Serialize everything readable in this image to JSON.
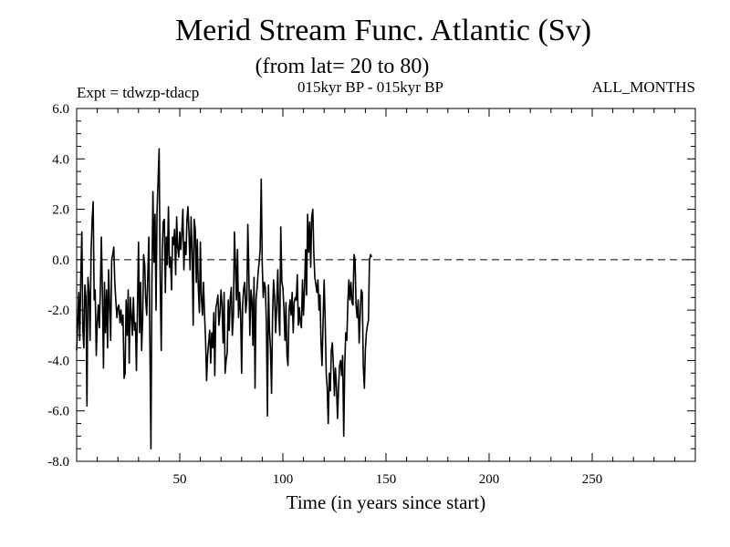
{
  "header": {
    "title": "Merid Stream Func. Atlantic (Sv)",
    "subtitle": "(from lat= 20 to 80)",
    "experiment": "Expt = tdwzp-tdacp",
    "period": "015kyr BP - 015kyr BP",
    "months": "ALL_MONTHS"
  },
  "chart_data": {
    "type": "line",
    "title": "Merid Stream Func. Atlantic (Sv)",
    "subtitle": "(from lat= 20 to 80)",
    "xlabel": "Time (in years since start)",
    "ylabel": "",
    "xlim": [
      0,
      300
    ],
    "ylim": [
      -8,
      6
    ],
    "x_ticks": [
      50,
      100,
      150,
      200,
      250
    ],
    "y_ticks": [
      6,
      4,
      2,
      0,
      -2,
      -4,
      -6,
      -8
    ],
    "y_tick_labels": [
      "6.0",
      "4.0",
      "2.0",
      "0.0",
      "-2.0",
      "-4.0",
      "-6.0",
      "-8.0"
    ],
    "reference_line": {
      "y": 0,
      "style": "dashed"
    },
    "grid": false,
    "x_start": 0,
    "x_step": 0.5,
    "series": [
      {
        "color": "#000000",
        "values": [
          -3.6,
          -2.6,
          -1.3,
          -3.2,
          -0.8,
          1.1,
          -2.8,
          -3.5,
          -1.0,
          -1.5,
          -5.8,
          -0.7,
          -1.3,
          -3.2,
          0.3,
          1.6,
          2.3,
          -1.6,
          -1.2,
          -3.8,
          -2.5,
          -1.8,
          -2.7,
          -1.1,
          0.9,
          -1.5,
          -4.3,
          -0.9,
          -2.9,
          -1.2,
          -3.5,
          -0.4,
          -1.9,
          -3.2,
          0.0,
          0.2,
          0.5,
          -0.9,
          -1.6,
          -2.3,
          -1.9,
          -1.8,
          -2.5,
          -2.0,
          -2.6,
          -2.2,
          -4.7,
          -4.5,
          -1.6,
          -3.0,
          -1.2,
          -4.1,
          -1.5,
          -2.2,
          -3.0,
          -1.5,
          -2.8,
          -2.5,
          -4.4,
          -1.8,
          0.7,
          -2.9,
          -0.9,
          -3.6,
          -2.4,
          0.2,
          -0.2,
          -1.6,
          -2.2,
          -0.6,
          0.9,
          -3.1,
          -7.5,
          -0.9,
          2.7,
          -0.1,
          1.8,
          -2.0,
          1.9,
          3.2,
          4.4,
          -0.6,
          -3.6,
          0.4,
          1.5,
          1.6,
          -1.3,
          0.9,
          -0.2,
          2.1,
          -0.3,
          0.1,
          -1.2,
          0.9,
          0.6,
          1.2,
          -0.6,
          1.7,
          0.5,
          0.1,
          1.1,
          0.4,
          1.1,
          2.0,
          -0.4,
          0.7,
          0.2,
          1.6,
          2.1,
          1.0,
          -0.4,
          1.7,
          0.3,
          -2.6,
          1.6,
          1.2,
          -0.9,
          0.8,
          -1.1,
          -2.1,
          0.7,
          -1.5,
          -2.2,
          -0.9,
          -2.1,
          -3.2,
          -4.8,
          -3.8,
          -3.3,
          -2.8,
          -4.1,
          -2.9,
          -3.5,
          -2.1,
          -4.6,
          -1.9,
          -1.7,
          -1.4,
          -2.6,
          -2.1,
          -1.2,
          -1.8,
          -3.3,
          -1.3,
          -4.5,
          -4.0,
          -3.7,
          -1.6,
          -2.8,
          -1.5,
          -1.1,
          -3.0,
          -2.2,
          1.1,
          -0.1,
          -1.6,
          0.4,
          -2.3,
          -1.3,
          -2.1,
          -4.5,
          -1.8,
          -1.1,
          -0.9,
          -2.1,
          -1.6,
          1.4,
          -0.5,
          -3.0,
          -1.2,
          -1.6,
          -3.4,
          -0.7,
          -5.1,
          -1.6,
          -1.1,
          -0.5,
          -0.1,
          0.4,
          3.2,
          -0.2,
          -1.5,
          -0.9,
          -1.1,
          -2.5,
          -6.2,
          -1.0,
          -2.8,
          -3.5,
          -5.3,
          -2.2,
          -0.8,
          -1.5,
          -2.9,
          -1.9,
          -0.4,
          -2.1,
          -3.0,
          1.3,
          -0.9,
          -1.1,
          -1.9,
          -3.2,
          -1.7,
          -3.8,
          -4.2,
          -2.0,
          -1.6,
          -2.2,
          -1.3,
          -2.9,
          -1.7,
          -1.5,
          -1.6,
          -0.6,
          -2.6,
          -1.9,
          -2.5,
          -2.7,
          -0.8,
          -2.2,
          -1.2,
          0.4,
          -1.4,
          1.8,
          0.3,
          1.5,
          -0.3,
          1.7,
          2.0,
          0.3,
          -0.7,
          -1.0,
          -1.3,
          -0.8,
          -2.0,
          -1.4,
          -3.3,
          -4.2,
          -2.4,
          -0.8,
          -2.3,
          -4.5,
          -5.1,
          -6.5,
          -4.5,
          -5.2,
          -3.6,
          -3.3,
          -4.2,
          -5.4,
          -4.3,
          -5.1,
          -6.3,
          -5.1,
          -4.2,
          -4.0,
          -4.6,
          -3.8,
          -7.0,
          -4.2,
          -2.9,
          -3.2,
          -1.7,
          -0.8,
          -1.6,
          -0.9,
          -1.7,
          -1.8,
          0.2,
          0.0,
          -1.8,
          -2.3,
          -1.6,
          -3.3,
          -2.1,
          -1.2,
          -1.3,
          -4.2,
          -5.1,
          -3.6,
          -2.9,
          -2.6,
          -2.4,
          0.0,
          0.2,
          0.1
        ]
      }
    ]
  }
}
